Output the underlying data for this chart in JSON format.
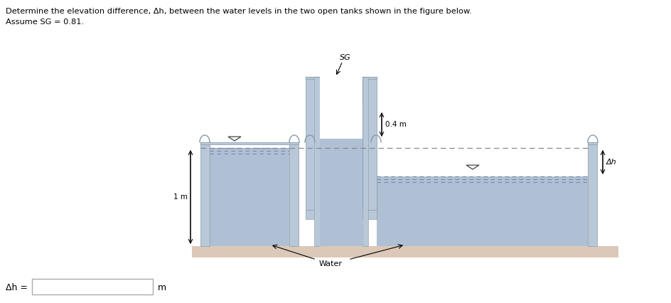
{
  "title_line1": "Determine the elevation difference, Δh, between the water levels in the two open tanks shown in the figure below.",
  "title_line2": "Assume SG = 0.81.",
  "label_sg": "SG",
  "label_water": "Water",
  "label_1m": "1 m",
  "label_04m": "0.4 m",
  "label_dh": "Δh",
  "label_dh_eq": "Δh =",
  "label_m": "m",
  "bg_color": "#ffffff",
  "water_color": "#b0c0d4",
  "tank_wall_color": "#b8c8d8",
  "tank_wall_edge": "#8899aa",
  "sg_fluid_color": "#6688aa",
  "sg_top_color": "#4a6080",
  "floor_color": "#dcc8b8",
  "dashed_color": "#777788",
  "text_color": "#000000",
  "arrow_color": "#000000"
}
